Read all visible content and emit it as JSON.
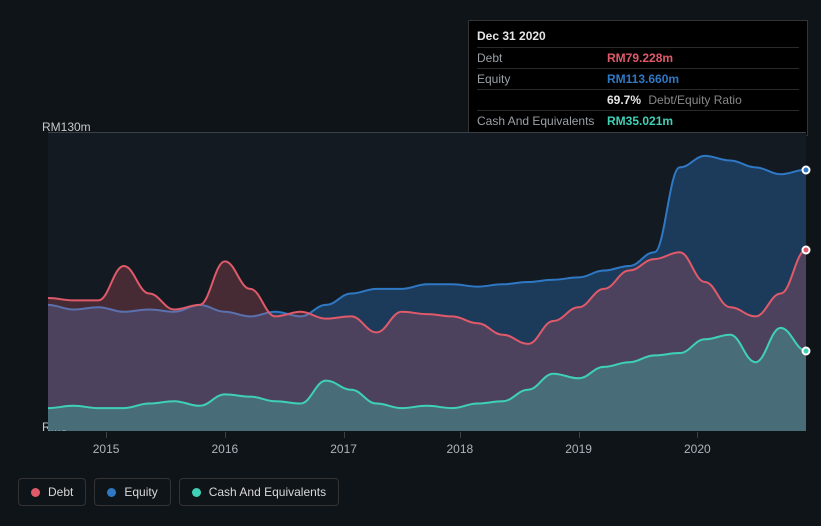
{
  "chart": {
    "type": "area",
    "background_color": "#0f1419",
    "plot_background": "#131a22",
    "ylim": [
      0,
      130
    ],
    "y_axis_labels": {
      "top": "RM130m",
      "bottom": "RM0"
    },
    "y_label_color": "#c8c8c8",
    "x_ticks": [
      "2015",
      "2016",
      "2017",
      "2018",
      "2019",
      "2020"
    ],
    "x_tick_color": "#aeb4bb",
    "grid_color": "#3a4048",
    "series": {
      "debt": {
        "label": "Debt",
        "color": "#e05a6a",
        "fill_opacity": 0.25,
        "values": [
          58,
          57,
          57,
          72,
          60,
          53,
          55,
          74,
          62,
          50,
          52,
          49,
          50,
          43,
          52,
          51,
          50,
          47,
          42,
          38,
          48,
          54,
          62,
          70,
          75,
          78,
          65,
          54,
          50,
          60,
          79
        ]
      },
      "equity": {
        "label": "Equity",
        "color": "#2f78c4",
        "fill_opacity": 0.35,
        "values": [
          55,
          53,
          54,
          52,
          53,
          52,
          55,
          52,
          50,
          52,
          50,
          55,
          60,
          62,
          62,
          64,
          64,
          63,
          64,
          65,
          66,
          67,
          70,
          72,
          78,
          115,
          120,
          118,
          115,
          112,
          114
        ]
      },
      "cash": {
        "label": "Cash And Equivalents",
        "color": "#3fd1b6",
        "fill_opacity": 0.3,
        "values": [
          10,
          11,
          10,
          10,
          12,
          13,
          11,
          16,
          15,
          13,
          12,
          22,
          18,
          12,
          10,
          11,
          10,
          12,
          13,
          18,
          25,
          23,
          28,
          30,
          33,
          34,
          40,
          42,
          30,
          45,
          35
        ]
      }
    },
    "highlight_index": 30,
    "markers_at_end": true
  },
  "tooltip": {
    "date": "Dec 31 2020",
    "rows": [
      {
        "label": "Debt",
        "value": "RM79.228m",
        "color": "#e05a6a"
      },
      {
        "label": "Equity",
        "value": "RM113.660m",
        "color": "#2f78c4"
      },
      {
        "label": "",
        "value": "69.7%",
        "note": "Debt/Equity Ratio",
        "color": "#e6e6e6"
      },
      {
        "label": "Cash And Equivalents",
        "value": "RM35.021m",
        "color": "#3fd1b6"
      }
    ]
  },
  "legend": [
    {
      "label": "Debt",
      "color": "#e05a6a"
    },
    {
      "label": "Equity",
      "color": "#2f78c4"
    },
    {
      "label": "Cash And Equivalents",
      "color": "#3fd1b6"
    }
  ]
}
